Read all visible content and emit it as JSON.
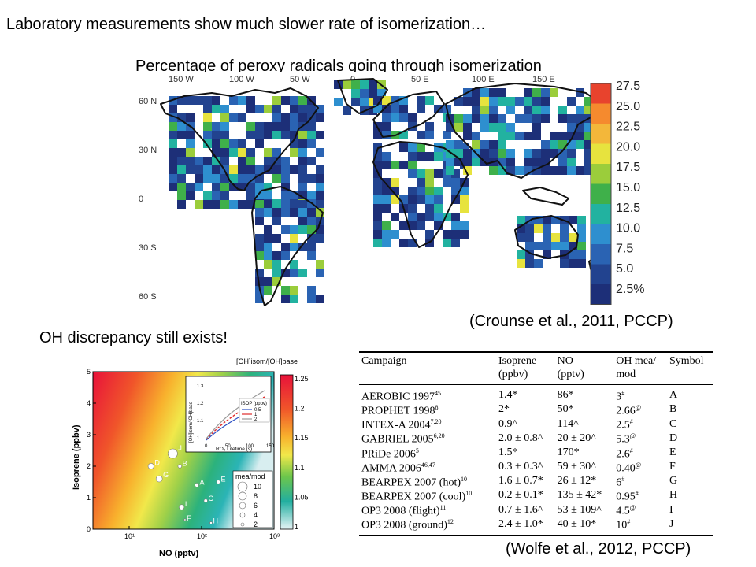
{
  "slide": {
    "heading": "Laboratory measurements show much slower rate of isomerization…",
    "map_title": "Percentage of peroxy radicals going through isomerization",
    "citation_top": "(Crounse et al., 2011, PCCP)",
    "oh_note": "OH discrepancy still exists!",
    "citation_bottom": "(Wolfe et al., 2012, PCCP)"
  },
  "map": {
    "lon_labels": [
      "150 W",
      "100 W",
      "50 W",
      "0",
      "50 E",
      "100 E",
      "150 E"
    ],
    "lat_labels": [
      "60 N",
      "30 N",
      "0",
      "30 S",
      "60 S"
    ],
    "colorbar_labels": [
      "27.5",
      "25.0",
      "22.5",
      "20.0",
      "17.5",
      "15.0",
      "12.5",
      "10.0",
      "7.5",
      "5.0",
      "2.5%"
    ],
    "colorbar_colors": [
      "#e8432d",
      "#f58a2e",
      "#f3b73a",
      "#e7e33e",
      "#9bcd3b",
      "#3fb04a",
      "#22b2a0",
      "#2e8fcf",
      "#2a63b3",
      "#22438f",
      "#1d2f78"
    ]
  },
  "scatter": {
    "x_label": "NO (pptv)",
    "y_label": "Isoprene (ppbv)",
    "x_ticks": [
      "10¹",
      "10²",
      "10³"
    ],
    "y_ticks": [
      "0",
      "1",
      "2",
      "3",
      "4",
      "5"
    ],
    "colorbar_title": "[OH]isom/[OH]base",
    "colorbar_ticks": [
      "1.25",
      "1.2",
      "1.15",
      "1.1",
      "1.05",
      "1"
    ],
    "inset": {
      "x_label": "RO₂ Lifetime (s)",
      "y_label": "[OH]isom/[OH]base",
      "x_ticks": [
        "0",
        "50",
        "100",
        "150"
      ],
      "y_ticks": [
        "1.3",
        "1.2",
        "1.1",
        "1"
      ],
      "legend_title": "ISOP (ppbv)",
      "legend_items": [
        "0.5",
        "1",
        "2"
      ]
    },
    "size_legend_title": "mea/mod",
    "size_legend_items": [
      "10",
      "8",
      "6",
      "4",
      "2"
    ],
    "points": [
      {
        "label": "A",
        "no": 86,
        "isoprene": 1.4,
        "ratio": 3
      },
      {
        "label": "B",
        "no": 50,
        "isoprene": 2,
        "ratio": 2.66
      },
      {
        "label": "C",
        "no": 114,
        "isoprene": 0.9,
        "ratio": 2.5
      },
      {
        "label": "D",
        "no": 20,
        "isoprene": 2,
        "ratio": 5.3
      },
      {
        "label": "E",
        "no": 170,
        "isoprene": 1.5,
        "ratio": 2.6
      },
      {
        "label": "F",
        "no": 59,
        "isoprene": 0.3,
        "ratio": 0.4
      },
      {
        "label": "G",
        "no": 26,
        "isoprene": 1.6,
        "ratio": 6
      },
      {
        "label": "H",
        "no": 135,
        "isoprene": 0.2,
        "ratio": 0.95
      },
      {
        "label": "I",
        "no": 53,
        "isoprene": 0.7,
        "ratio": 4.5
      },
      {
        "label": "J",
        "no": 40,
        "isoprene": 2.4,
        "ratio": 10
      }
    ]
  },
  "table": {
    "headers": [
      {
        "line1": "Campaign",
        "line2": ""
      },
      {
        "line1": "Isoprene",
        "line2": "(ppbv)"
      },
      {
        "line1": "NO",
        "line2": "(pptv)"
      },
      {
        "line1": "OH mea/",
        "line2": "mod"
      },
      {
        "line1": "Symbol",
        "line2": ""
      }
    ],
    "rows": [
      {
        "campaign": "AEROBIC 1997",
        "ref": "45",
        "isoprene": "1.4*",
        "no": "86*",
        "oh": "3",
        "oh_mark": "#",
        "symbol": "A"
      },
      {
        "campaign": "PROPHET 1998",
        "ref": "8",
        "isoprene": "2*",
        "no": "50*",
        "oh": "2.66",
        "oh_mark": "@",
        "symbol": "B"
      },
      {
        "campaign": "INTEX-A 2004",
        "ref": "7,20",
        "isoprene": "0.9^",
        "no": "114^",
        "oh": "2.5",
        "oh_mark": "#",
        "symbol": "C"
      },
      {
        "campaign": "GABRIEL 2005",
        "ref": "6,20",
        "isoprene": "2.0 ± 0.8^",
        "no": "20 ± 20^",
        "oh": "5.3",
        "oh_mark": "@",
        "symbol": "D"
      },
      {
        "campaign": "PRiDe 2006",
        "ref": "5",
        "isoprene": "1.5*",
        "no": "170*",
        "oh": "2.6",
        "oh_mark": "#",
        "symbol": "E"
      },
      {
        "campaign": "AMMA 2006",
        "ref": "46,47",
        "isoprene": "0.3 ± 0.3^",
        "no": "59 ± 30^",
        "oh": "0.40",
        "oh_mark": "@",
        "symbol": "F"
      },
      {
        "campaign": "BEARPEX 2007 (hot)",
        "ref": "10",
        "isoprene": "1.6 ± 0.7*",
        "no": "26 ± 12*",
        "oh": "6",
        "oh_mark": "#",
        "symbol": "G"
      },
      {
        "campaign": "BEARPEX 2007 (cool)",
        "ref": "10",
        "isoprene": "0.2 ± 0.1*",
        "no": "135 ± 42*",
        "oh": "0.95",
        "oh_mark": "#",
        "symbol": "H"
      },
      {
        "campaign": "OP3 2008 (flight)",
        "ref": "11",
        "isoprene": "0.7 ± 1.6^",
        "no": "53 ± 109^",
        "oh": "4.5",
        "oh_mark": "@",
        "symbol": "I"
      },
      {
        "campaign": "OP3 2008 (ground)",
        "ref": "12",
        "isoprene": "2.4 ± 1.0*",
        "no": "40 ± 10*",
        "oh": "10",
        "oh_mark": "#",
        "symbol": "J"
      }
    ]
  }
}
